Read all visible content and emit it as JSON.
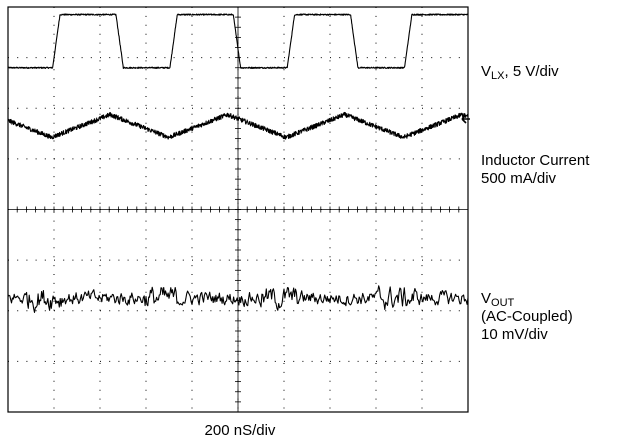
{
  "chart_data": {
    "type": "line",
    "title": "",
    "xlabel": "200 nS/div",
    "ylabel": "",
    "grid": true,
    "divisions": {
      "x": 10,
      "y": 8
    },
    "x_range_div": [
      0,
      10
    ],
    "traces": [
      {
        "key": "vlx",
        "label_main": "V",
        "label_sub": "LX",
        "label_tail": ", 5 V/div",
        "kind": "square",
        "low_div": 6.8,
        "high_div": 7.85,
        "period_div": 2.55,
        "duty": 0.54,
        "first_rise_div": 0.97,
        "rise_div": 0.16
      },
      {
        "key": "il",
        "label_line1": "Inductor Current",
        "label_line2": "500 mA/div",
        "kind": "triangle",
        "center_div": 5.65,
        "peak_to_peak_div": 0.45,
        "period_div": 2.55,
        "first_peak_div": 2.22,
        "noise_div": 0.09
      },
      {
        "key": "vout",
        "label_main": "V",
        "label_sub": "OUT",
        "label_line2": "(AC-Coupled)",
        "label_line3": "10 mV/div",
        "kind": "noise",
        "center_div": 2.25,
        "amplitude_div": 0.22
      }
    ],
    "marker": {
      "symbol": "arrow-left",
      "trace": "vlx"
    },
    "colors": {
      "trace": "#000000",
      "grid": "#000000",
      "background": "#ffffff"
    }
  }
}
